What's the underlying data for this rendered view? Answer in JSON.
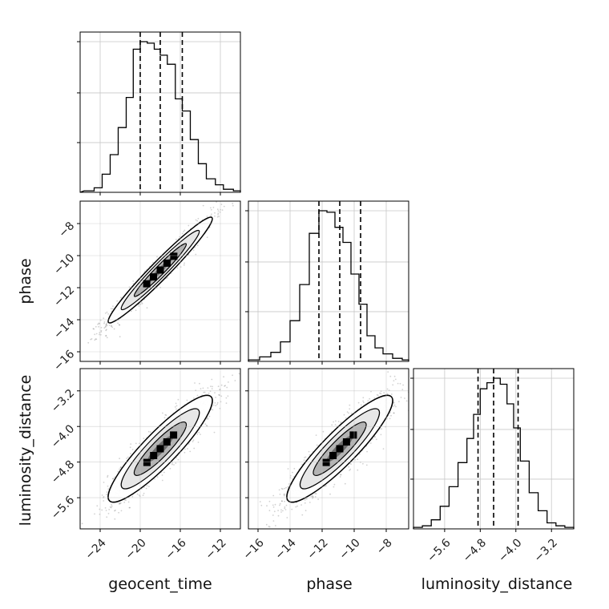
{
  "chart_data": {
    "type": "corner",
    "parameters": [
      {
        "key": "geocent_time",
        "label": "geocent_time",
        "range": [
          -26,
          -10
        ],
        "ticks": [
          -24,
          -20,
          -16,
          -12
        ],
        "tick_labels": [
          "−24",
          "−20",
          "−16",
          "−12"
        ],
        "quantiles": [
          -20.0,
          -18.0,
          -15.8
        ],
        "hist_bins": [
          -25.6,
          -24.6,
          -23.8,
          -23.0,
          -22.2,
          -21.4,
          -20.7,
          -20.0,
          -19.3,
          -18.6,
          -18.0,
          -17.3,
          -16.5,
          -15.8,
          -15.0,
          -14.2,
          -13.4,
          -12.5,
          -11.7,
          -10.7,
          -10.0
        ],
        "hist_counts": [
          0.01,
          0.03,
          0.12,
          0.25,
          0.43,
          0.63,
          0.95,
          1.0,
          0.99,
          0.95,
          0.91,
          0.85,
          0.62,
          0.54,
          0.35,
          0.19,
          0.09,
          0.05,
          0.02,
          0.01
        ]
      },
      {
        "key": "phase",
        "label": "phase",
        "range": [
          -16.6,
          -6.6
        ],
        "ticks": [
          -16,
          -14,
          -12,
          -10,
          -8
        ],
        "tick_labels": [
          "−16",
          "−14",
          "−12",
          "−10",
          "−8"
        ],
        "quantiles": [
          -12.2,
          -10.9,
          -9.6
        ],
        "hist_bins": [
          -16.6,
          -15.9,
          -15.2,
          -14.6,
          -14.0,
          -13.4,
          -12.8,
          -12.2,
          -11.7,
          -11.2,
          -10.7,
          -10.2,
          -9.7,
          -9.2,
          -8.7,
          -8.2,
          -7.6,
          -7.0,
          -6.6
        ],
        "hist_counts": [
          0.01,
          0.03,
          0.06,
          0.13,
          0.27,
          0.51,
          0.85,
          1.0,
          0.99,
          0.89,
          0.79,
          0.58,
          0.38,
          0.17,
          0.09,
          0.05,
          0.02,
          0.01
        ]
      },
      {
        "key": "luminosity_distance",
        "label": "luminosity_distance",
        "range": [
          -6.3,
          -2.7
        ],
        "ticks": [
          -5.6,
          -4.8,
          -4.0,
          -3.2
        ],
        "tick_labels": [
          "−5.6",
          "−4.8",
          "−4.0",
          "−3.2"
        ],
        "quantiles": [
          -4.85,
          -4.5,
          -3.95
        ],
        "hist_bins": [
          -6.3,
          -6.1,
          -5.9,
          -5.7,
          -5.5,
          -5.3,
          -5.1,
          -4.95,
          -4.8,
          -4.65,
          -4.5,
          -4.35,
          -4.2,
          -4.05,
          -3.9,
          -3.7,
          -3.5,
          -3.3,
          -3.1,
          -2.9,
          -2.7
        ],
        "hist_counts": [
          0.01,
          0.02,
          0.06,
          0.15,
          0.28,
          0.44,
          0.6,
          0.76,
          0.93,
          0.97,
          1.0,
          0.96,
          0.83,
          0.67,
          0.45,
          0.24,
          0.12,
          0.04,
          0.02,
          0.01
        ]
      }
    ],
    "correlations": [
      {
        "x": "geocent_time",
        "y": "phase",
        "center": [
          -18.0,
          -10.9
        ],
        "correlation": 0.97,
        "sd_x": 2.6,
        "sd_y": 1.65
      },
      {
        "x": "geocent_time",
        "y": "luminosity_distance",
        "center": [
          -18.0,
          -4.5
        ],
        "correlation": 0.9,
        "sd_x": 2.6,
        "sd_y": 0.6
      },
      {
        "x": "phase",
        "y": "luminosity_distance",
        "center": [
          -10.9,
          -4.5
        ],
        "correlation": 0.9,
        "sd_x": 1.65,
        "sd_y": 0.6
      }
    ],
    "grid": true,
    "quantile_style": "dashed",
    "contour_levels_sigma": [
      0.5,
      1.0,
      1.5,
      2.0
    ]
  }
}
